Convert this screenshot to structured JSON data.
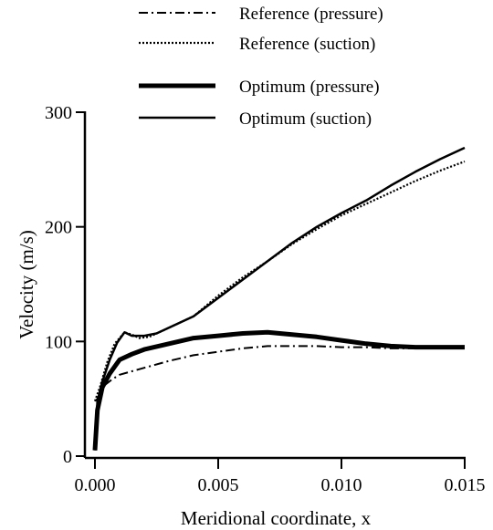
{
  "chart_data": {
    "type": "line",
    "xlabel": "Meridional coordinate, x",
    "ylabel": "Velocity (m/s)",
    "xlim": [
      0.0,
      0.015
    ],
    "ylim": [
      0,
      300
    ],
    "x_ticks": [
      "0.000",
      "0.005",
      "0.010",
      "0.015"
    ],
    "x_tick_values": [
      0.0,
      0.005,
      0.01,
      0.015
    ],
    "y_ticks": [
      "0",
      "100",
      "200",
      "300"
    ],
    "y_tick_values": [
      0,
      100,
      200,
      300
    ],
    "grid": false,
    "legend_position": "top",
    "series": [
      {
        "name": "Reference (pressure)",
        "style": "dash-dot",
        "color": "#000000",
        "x": [
          0.0,
          0.0001,
          0.0002,
          0.0004,
          0.0007,
          0.001,
          0.0015,
          0.002,
          0.003,
          0.004,
          0.005,
          0.006,
          0.007,
          0.008,
          0.009,
          0.01,
          0.011,
          0.012,
          0.013,
          0.014,
          0.015
        ],
        "y": [
          48,
          50,
          55,
          62,
          67,
          71,
          74,
          77,
          83,
          88,
          91,
          94,
          96,
          96,
          96,
          95,
          95,
          94,
          94,
          94,
          94
        ]
      },
      {
        "name": "Reference (suction)",
        "style": "dotted",
        "color": "#000000",
        "x": [
          0.0,
          0.0002,
          0.0005,
          0.0008,
          0.0012,
          0.0015,
          0.0018,
          0.0022,
          0.003,
          0.004,
          0.005,
          0.006,
          0.007,
          0.008,
          0.009,
          0.01,
          0.011,
          0.012,
          0.013,
          0.014,
          0.015
        ],
        "y": [
          48,
          60,
          82,
          98,
          108,
          106,
          103,
          104,
          112,
          122,
          140,
          156,
          170,
          185,
          198,
          210,
          220,
          230,
          240,
          249,
          257
        ]
      },
      {
        "name": "Optimum (pressure)",
        "style": "thick",
        "color": "#000000",
        "x": [
          0.0,
          0.0001,
          0.0003,
          0.0006,
          0.001,
          0.0015,
          0.002,
          0.003,
          0.004,
          0.005,
          0.006,
          0.007,
          0.008,
          0.009,
          0.01,
          0.011,
          0.012,
          0.013,
          0.014,
          0.015
        ],
        "y": [
          5,
          40,
          60,
          72,
          84,
          89,
          93,
          98,
          103,
          105,
          107,
          108,
          106,
          104,
          101,
          98,
          96,
          95,
          95,
          95
        ]
      },
      {
        "name": "Optimum (suction)",
        "style": "solid",
        "color": "#000000",
        "x": [
          0.0,
          0.0001,
          0.0003,
          0.0006,
          0.0009,
          0.0012,
          0.0015,
          0.002,
          0.0025,
          0.003,
          0.004,
          0.005,
          0.006,
          0.007,
          0.008,
          0.009,
          0.01,
          0.011,
          0.012,
          0.013,
          0.014,
          0.015
        ],
        "y": [
          5,
          48,
          65,
          84,
          99,
          108,
          105,
          105,
          107,
          112,
          122,
          138,
          154,
          170,
          186,
          200,
          212,
          223,
          236,
          248,
          259,
          269
        ]
      }
    ]
  }
}
